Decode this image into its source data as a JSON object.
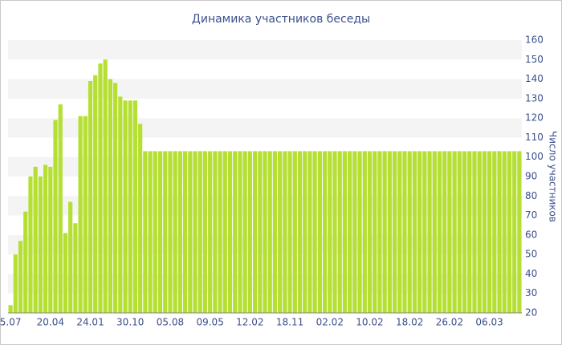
{
  "chart_data": {
    "type": "bar",
    "title": "Динамика участников беседы",
    "y_axis_label": "Число участников",
    "categories": [
      "5.07",
      null,
      null,
      null,
      null,
      null,
      null,
      null,
      "20.04",
      null,
      null,
      null,
      null,
      null,
      null,
      null,
      "24.01",
      null,
      null,
      null,
      null,
      null,
      null,
      null,
      "30.10",
      null,
      null,
      null,
      null,
      null,
      null,
      null,
      "05.08",
      null,
      null,
      null,
      null,
      null,
      null,
      null,
      "09.05",
      null,
      null,
      null,
      null,
      null,
      null,
      null,
      "12.02",
      null,
      null,
      null,
      null,
      null,
      null,
      null,
      "18.11",
      null,
      null,
      null,
      null,
      null,
      null,
      null,
      "02.02",
      null,
      null,
      null,
      null,
      null,
      null,
      null,
      "10.02",
      null,
      null,
      null,
      null,
      null,
      null,
      null,
      "18.02",
      null,
      null,
      null,
      null,
      null,
      null,
      null,
      "26.02",
      null,
      null,
      null,
      null,
      null,
      null,
      null,
      "06.03",
      null,
      null,
      null,
      null,
      null,
      null
    ],
    "values": [
      24,
      50,
      57,
      72,
      90,
      95,
      90,
      96,
      95,
      119,
      127,
      61,
      77,
      66,
      121,
      121,
      139,
      142,
      148,
      150,
      140,
      138,
      131,
      129,
      129,
      129,
      117,
      103,
      103,
      103,
      103,
      103,
      103,
      103,
      103,
      103,
      103,
      103,
      103,
      103,
      103,
      103,
      103,
      103,
      103,
      103,
      103,
      103,
      103,
      103,
      103,
      103,
      103,
      103,
      103,
      103,
      103,
      103,
      103,
      103,
      103,
      103,
      103,
      103,
      103,
      103,
      103,
      103,
      103,
      103,
      103,
      103,
      103,
      103,
      103,
      103,
      103,
      103,
      103,
      103,
      103,
      103,
      103,
      103,
      103,
      103,
      103,
      103,
      103,
      103,
      103,
      103,
      103,
      103,
      103,
      103,
      103,
      103,
      103,
      103,
      103,
      103,
      103
    ],
    "color": "#b5e033",
    "ylim": [
      20,
      160
    ],
    "yticks": [
      20,
      30,
      40,
      50,
      60,
      70,
      80,
      90,
      100,
      110,
      120,
      130,
      140,
      150,
      160
    ],
    "grid": true
  }
}
